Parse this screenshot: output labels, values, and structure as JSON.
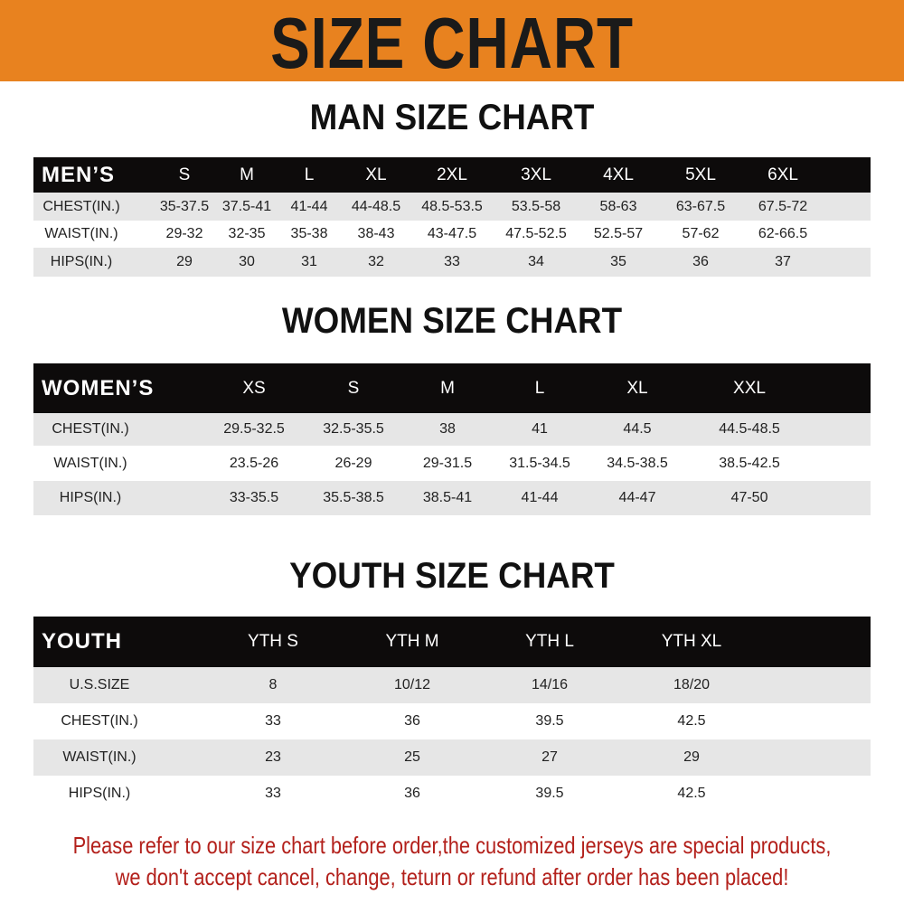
{
  "banner": {
    "title": "SIZE CHART",
    "color": "#e8821f"
  },
  "men": {
    "title": "MAN SIZE CHART",
    "header": [
      "MEN’S",
      "S",
      "M",
      "L",
      "XL",
      "2XL",
      "3XL",
      "4XL",
      "5XL",
      "6XL"
    ],
    "rows": [
      [
        "CHEST(IN.)",
        "35-37.5",
        "37.5-41",
        "41-44",
        "44-48.5",
        "48.5-53.5",
        "53.5-58",
        "58-63",
        "63-67.5",
        "67.5-72"
      ],
      [
        "WAIST(IN.)",
        "29-32",
        "32-35",
        "35-38",
        "38-43",
        "43-47.5",
        "47.5-52.5",
        "52.5-57",
        "57-62",
        "62-66.5"
      ],
      [
        "HIPS(IN.)",
        "29",
        "30",
        "31",
        "32",
        "33",
        "34",
        "35",
        "36",
        "37"
      ]
    ]
  },
  "women": {
    "title": "WOMEN SIZE CHART",
    "header": [
      "WOMEN’S",
      "XS",
      "S",
      "M",
      "L",
      "XL",
      "XXL"
    ],
    "rows": [
      [
        "CHEST(IN.)",
        "29.5-32.5",
        "32.5-35.5",
        "38",
        "41",
        "44.5",
        "44.5-48.5"
      ],
      [
        "WAIST(IN.)",
        "23.5-26",
        "26-29",
        "29-31.5",
        "31.5-34.5",
        "34.5-38.5",
        "38.5-42.5"
      ],
      [
        "HIPS(IN.)",
        "33-35.5",
        "35.5-38.5",
        "38.5-41",
        "41-44",
        "44-47",
        "47-50"
      ]
    ]
  },
  "youth": {
    "title": "YOUTH SIZE CHART",
    "header": [
      "YOUTH",
      "YTH S",
      "YTH M",
      "YTH L",
      "YTH XL"
    ],
    "rows": [
      [
        "U.S.SIZE",
        "8",
        "10/12",
        "14/16",
        "18/20"
      ],
      [
        "CHEST(IN.)",
        "33",
        "36",
        "39.5",
        "42.5"
      ],
      [
        "WAIST(IN.)",
        "23",
        "25",
        "27",
        "29"
      ],
      [
        "HIPS(IN.)",
        "33",
        "36",
        "39.5",
        "42.5"
      ]
    ]
  },
  "notice": {
    "line1": "Please refer to our size chart before order,the customized jerseys are special products,",
    "line2": "we don't accept cancel, change, teturn or refund after order has been placed!",
    "color": "#b3201b"
  }
}
